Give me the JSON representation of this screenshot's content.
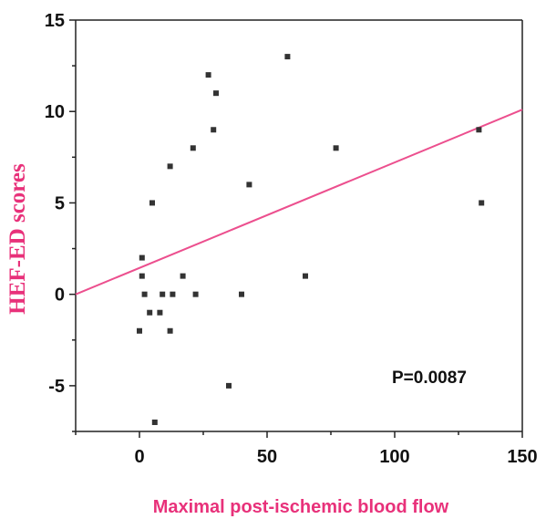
{
  "chart_data": {
    "type": "scatter",
    "title": "",
    "xlabel": "Maximal post-ischemic blood flow",
    "ylabel": "HEF-ED scores",
    "xlim": [
      -25,
      150
    ],
    "ylim": [
      -7.5,
      15
    ],
    "x_ticks": [
      0,
      50,
      100,
      150
    ],
    "y_ticks": [
      -5,
      0,
      5,
      10,
      15
    ],
    "grid": false,
    "label_color": "#e8317a",
    "fit_color": "#ec4f8e",
    "point_color": "#333333",
    "annotation": "P=0.0087",
    "points": [
      {
        "x": 0,
        "y": -2
      },
      {
        "x": 1,
        "y": 2
      },
      {
        "x": 1,
        "y": 1
      },
      {
        "x": 2,
        "y": 0
      },
      {
        "x": 4,
        "y": -1
      },
      {
        "x": 5,
        "y": 5
      },
      {
        "x": 6,
        "y": -7
      },
      {
        "x": 8,
        "y": -1
      },
      {
        "x": 9,
        "y": 0
      },
      {
        "x": 12,
        "y": 7
      },
      {
        "x": 12,
        "y": -2
      },
      {
        "x": 13,
        "y": 0
      },
      {
        "x": 17,
        "y": 1
      },
      {
        "x": 21,
        "y": 8
      },
      {
        "x": 22,
        "y": 0
      },
      {
        "x": 27,
        "y": 12
      },
      {
        "x": 29,
        "y": 9
      },
      {
        "x": 30,
        "y": 11
      },
      {
        "x": 35,
        "y": -5
      },
      {
        "x": 40,
        "y": 0
      },
      {
        "x": 43,
        "y": 6
      },
      {
        "x": 58,
        "y": 13
      },
      {
        "x": 65,
        "y": 1
      },
      {
        "x": 77,
        "y": 8
      },
      {
        "x": 133,
        "y": 9
      },
      {
        "x": 134,
        "y": 5
      }
    ],
    "fit_line": {
      "x": [
        -25,
        150
      ],
      "y": [
        0,
        10.1
      ]
    }
  }
}
